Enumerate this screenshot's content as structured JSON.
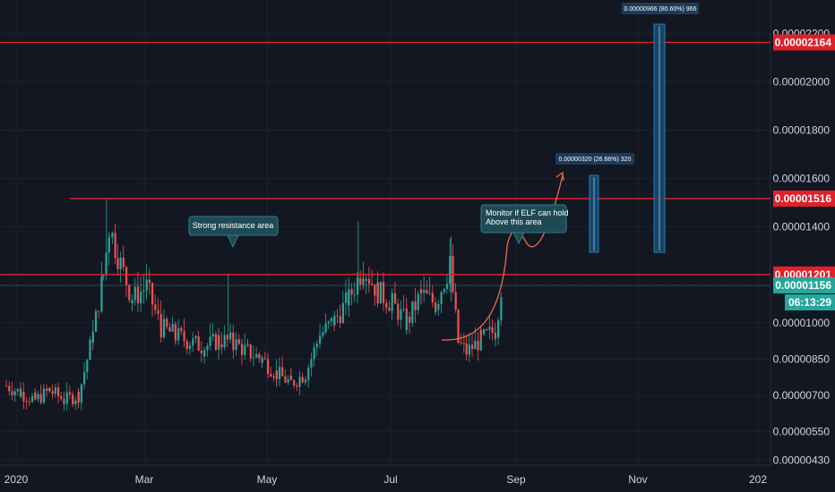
{
  "chart_data": {
    "type": "candlestick",
    "colors": {
      "background": "#131722",
      "up": "#26a69a",
      "down": "#ef5350",
      "level_line": "#e0202a",
      "current_line": "#4aa3a0",
      "callout_fill": "#1e4a55",
      "callout_border": "#2c7f86",
      "measure_fill": "#1d4b6b",
      "measure_border": "#2a8fd6",
      "arrow": "#f06a50",
      "axis_text": "#d1d4dc"
    },
    "ylim": [
      4.1e-06,
      2.34e-05
    ],
    "y_ticks": [
      "0.00000430",
      "0.00000550",
      "0.00000700",
      "0.00000850",
      "0.00001000",
      "0.00001400",
      "0.00001600",
      "0.00001800",
      "0.00002000",
      "0.00002200"
    ],
    "x_ticks": [
      "2020",
      "Mar",
      "May",
      "Jul",
      "Sep",
      "Nov",
      "202"
    ],
    "levels": [
      {
        "value": 2.164e-05,
        "label": "0.00002164"
      },
      {
        "value": 1.516e-05,
        "label": "0.00001516"
      },
      {
        "value": 1.201e-05,
        "label": "0.00001201"
      }
    ],
    "current_price": {
      "value": 1.156e-05,
      "label": "0.00001156",
      "countdown": "06:13:29"
    },
    "annotations": {
      "resistance_note": "Strong resistance area",
      "monitor_note_line1": "Monitor if ELF can hold",
      "monitor_note_line2": "Above this area",
      "measure_small": "0.00000320 (26.66%) 320",
      "measure_large": "0.00000966 (80.60%) 966"
    },
    "series": [
      {
        "name": "",
        "points": [
          {
            "x": "2020-01-01",
            "y": 7.4e-06
          },
          {
            "x": "2020-01-08",
            "y": 7.1e-06
          },
          {
            "x": "2020-01-15",
            "y": 6.8e-06
          },
          {
            "x": "2020-01-22",
            "y": 7.2e-06
          },
          {
            "x": "2020-01-29",
            "y": 6.8e-06
          },
          {
            "x": "2020-02-05",
            "y": 7e-06
          },
          {
            "x": "2020-02-12",
            "y": 9.5e-06
          },
          {
            "x": "2020-02-17",
            "y": 1.2e-05
          },
          {
            "x": "2020-02-20",
            "y": 1.4e-05
          },
          {
            "x": "2020-02-24",
            "y": 1.28e-05
          },
          {
            "x": "2020-03-02",
            "y": 1.1e-05
          },
          {
            "x": "2020-03-09",
            "y": 1.15e-05
          },
          {
            "x": "2020-03-16",
            "y": 9.8e-06
          },
          {
            "x": "2020-03-23",
            "y": 9.5e-06
          },
          {
            "x": "2020-03-30",
            "y": 9.2e-06
          },
          {
            "x": "2020-04-06",
            "y": 9e-06
          },
          {
            "x": "2020-04-13",
            "y": 9.3e-06
          },
          {
            "x": "2020-04-20",
            "y": 9.2e-06
          },
          {
            "x": "2020-04-27",
            "y": 8.8e-06
          },
          {
            "x": "2020-05-04",
            "y": 8.5e-06
          },
          {
            "x": "2020-05-11",
            "y": 7.9e-06
          },
          {
            "x": "2020-05-18",
            "y": 7.5e-06
          },
          {
            "x": "2020-05-25",
            "y": 7.9e-06
          },
          {
            "x": "2020-06-01",
            "y": 9.5e-06
          },
          {
            "x": "2020-06-08",
            "y": 1.01e-05
          },
          {
            "x": "2020-06-15",
            "y": 1.1e-05
          },
          {
            "x": "2020-06-22",
            "y": 1.23e-05
          },
          {
            "x": "2020-06-29",
            "y": 1.13e-05
          },
          {
            "x": "2020-07-06",
            "y": 1.08e-05
          },
          {
            "x": "2020-07-13",
            "y": 1e-05
          },
          {
            "x": "2020-07-20",
            "y": 1.12e-05
          },
          {
            "x": "2020-07-27",
            "y": 1.08e-05
          },
          {
            "x": "2020-08-03",
            "y": 1.24e-05
          },
          {
            "x": "2020-08-07",
            "y": 9.2e-06
          },
          {
            "x": "2020-08-11",
            "y": 8.8e-06
          },
          {
            "x": "2020-08-18",
            "y": 9.3e-06
          },
          {
            "x": "2020-08-25",
            "y": 9.7e-06
          },
          {
            "x": "2020-08-28",
            "y": 1.16e-05
          }
        ]
      }
    ]
  }
}
